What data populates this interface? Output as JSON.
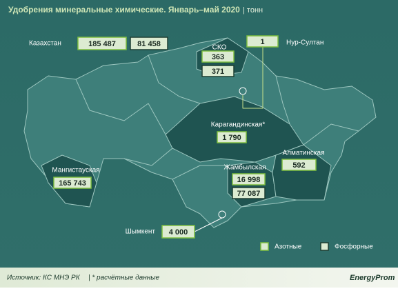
{
  "header": {
    "title": "Удобрения минеральные химические. Январь–май 2020",
    "unit": "| тонн"
  },
  "regions": [
    {
      "label": "Казахстан",
      "values": [
        "185 487",
        "81 458"
      ]
    },
    {
      "label": "СКО",
      "values": [
        "363",
        "371"
      ]
    },
    {
      "label": "Нур-Султан",
      "values": [
        "1"
      ]
    },
    {
      "label": "Карагандинская*",
      "values": [
        "1 790"
      ]
    },
    {
      "label": "Алматинская",
      "values": [
        "592"
      ]
    },
    {
      "label": "Жамбылская",
      "values": [
        "16 998",
        "77 087"
      ]
    },
    {
      "label": "Мангистауская",
      "values": [
        "165 743"
      ]
    },
    {
      "label": "Шымкент",
      "values": [
        "4 000"
      ]
    }
  ],
  "legend": [
    "Азотные",
    "Фосфорные"
  ],
  "footer": {
    "source": "Источник: КС МНЭ РК",
    "note": "| * расчётные данные",
    "brand": "EnergyProm"
  }
}
